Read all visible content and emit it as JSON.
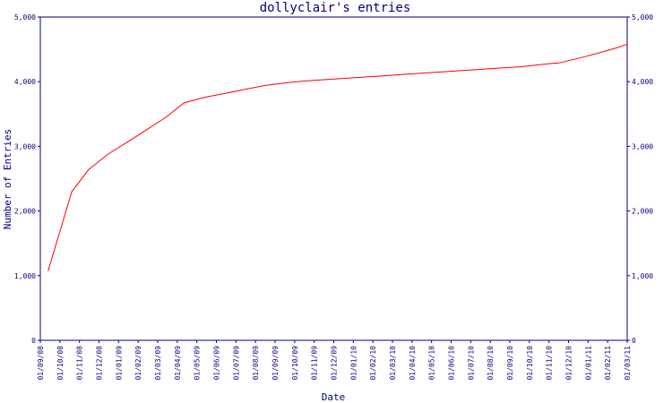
{
  "chart_data": {
    "type": "line",
    "title": "dollyclair's entries",
    "xlabel": "Date",
    "ylabel": "Number of Entries",
    "ylim": [
      0,
      5000
    ],
    "yticks": [
      "0",
      "1,000",
      "2,000",
      "3,000",
      "4,000",
      "5,000"
    ],
    "ytick_values": [
      0,
      1000,
      2000,
      3000,
      4000,
      5000
    ],
    "xticks": [
      "01/09/08",
      "01/10/08",
      "01/11/08",
      "01/12/08",
      "01/01/09",
      "01/02/09",
      "01/03/09",
      "01/04/09",
      "01/05/09",
      "01/06/09",
      "01/07/09",
      "01/08/09",
      "01/09/09",
      "01/10/09",
      "01/11/09",
      "01/12/09",
      "01/01/10",
      "01/02/10",
      "01/03/10",
      "01/04/10",
      "01/05/10",
      "01/06/10",
      "01/07/10",
      "01/08/10",
      "01/09/10",
      "01/10/10",
      "01/11/10",
      "01/12/10",
      "01/01/11",
      "01/02/11",
      "01/03/11"
    ],
    "xlim": [
      "2008-09-01",
      "2011-03-01"
    ],
    "grid": false,
    "y_axis_both_sides": true,
    "colors": {
      "frame": "#000080",
      "line": "#ff0000"
    },
    "series": [
      {
        "x": [
          "2008-09-13",
          "2008-10-20",
          "2008-11-15",
          "2008-12-15",
          "2009-01-15",
          "2009-02-15",
          "2009-03-15",
          "2009-04-12",
          "2009-05-15",
          "2009-06-15",
          "2009-07-15",
          "2009-08-15",
          "2009-09-15",
          "2009-10-15",
          "2009-11-15",
          "2009-12-15",
          "2010-01-15",
          "2010-02-15",
          "2010-03-15",
          "2010-04-15",
          "2010-05-15",
          "2010-06-15",
          "2010-07-15",
          "2010-08-15",
          "2010-09-15",
          "2010-10-15",
          "2010-11-01",
          "2010-11-15",
          "2010-12-15",
          "2011-01-15",
          "2011-02-15",
          "2011-03-01"
        ],
        "values": [
          1070,
          2300,
          2640,
          2880,
          3070,
          3270,
          3450,
          3670,
          3760,
          3820,
          3880,
          3940,
          3980,
          4010,
          4030,
          4050,
          4070,
          4090,
          4110,
          4130,
          4150,
          4170,
          4190,
          4210,
          4230,
          4260,
          4280,
          4290,
          4360,
          4440,
          4530,
          4580
        ]
      }
    ]
  }
}
